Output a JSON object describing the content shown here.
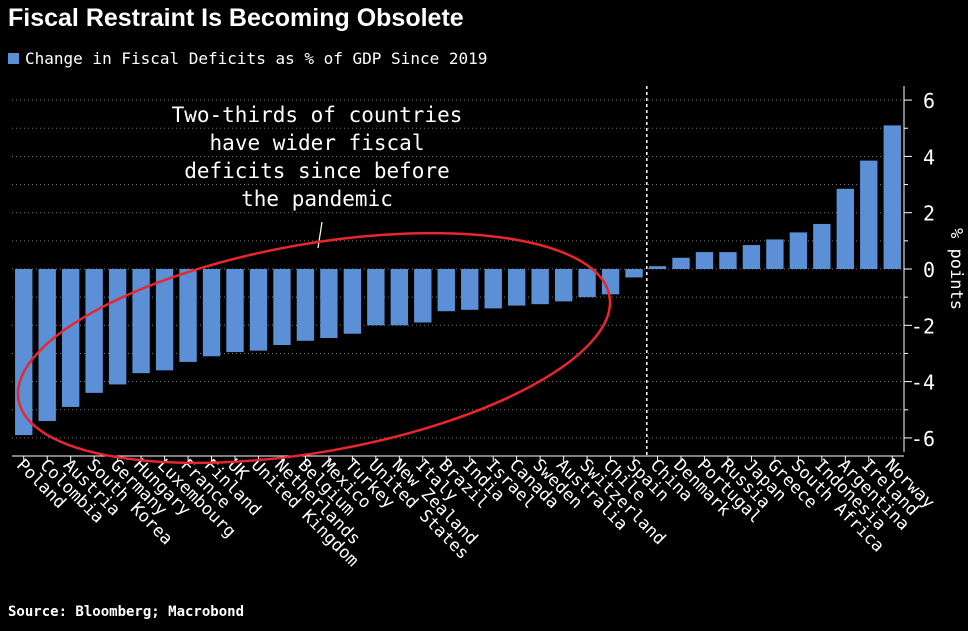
{
  "header": {
    "title": "Fiscal Restraint Is Becoming Obsolete",
    "legend_label": "Change in Fiscal Deficits as % of GDP Since 2019"
  },
  "footer": {
    "source": "Source: Bloomberg; Macrobond"
  },
  "annotation": {
    "lines": [
      "Two-thirds of countries",
      "have wider fiscal",
      "deficits since before",
      "the pandemic"
    ]
  },
  "colors": {
    "bar": "#5b8fd6",
    "ellipse": "#e8262d",
    "grid": "#7a7a7a",
    "background": "#000000"
  },
  "chart_data": {
    "type": "bar",
    "title": "Fiscal Restraint Is Becoming Obsolete",
    "series_name": "Change in Fiscal Deficits as % of GDP Since 2019",
    "ylabel": "% points",
    "ylim": [
      -6.5,
      6.5
    ],
    "yticks": [
      -6,
      -4,
      -2,
      0,
      2,
      4,
      6
    ],
    "categories": [
      "Poland",
      "Colombia",
      "Austria",
      "South Korea",
      "Germany",
      "Hungary",
      "Luxembourg",
      "France",
      "Finland",
      "UK",
      "United Kingdom",
      "Netherlands",
      "Belgium",
      "Mexico",
      "Turkey",
      "United States",
      "New Zealand",
      "Italy",
      "Brazil",
      "India",
      "Israel",
      "Canada",
      "Sweden",
      "Australia",
      "Switzerland",
      "Chile",
      "Spain",
      "China",
      "Denmark",
      "Portugal",
      "Russia",
      "Japan",
      "Greece",
      "South Africa",
      "Indonesia",
      "Argentina",
      "Ireland",
      "Norway"
    ],
    "values": [
      -5.9,
      -5.4,
      -4.9,
      -4.4,
      -4.1,
      -3.7,
      -3.6,
      -3.3,
      -3.1,
      -2.95,
      -2.9,
      -2.7,
      -2.55,
      -2.45,
      -2.3,
      -2.0,
      -2.0,
      -1.9,
      -1.5,
      -1.45,
      -1.4,
      -1.3,
      -1.25,
      -1.15,
      -1.0,
      -0.9,
      -0.3,
      0.1,
      0.4,
      0.6,
      0.6,
      0.85,
      1.05,
      1.3,
      1.6,
      2.85,
      3.85,
      5.1
    ],
    "divider_after_index": 26
  }
}
